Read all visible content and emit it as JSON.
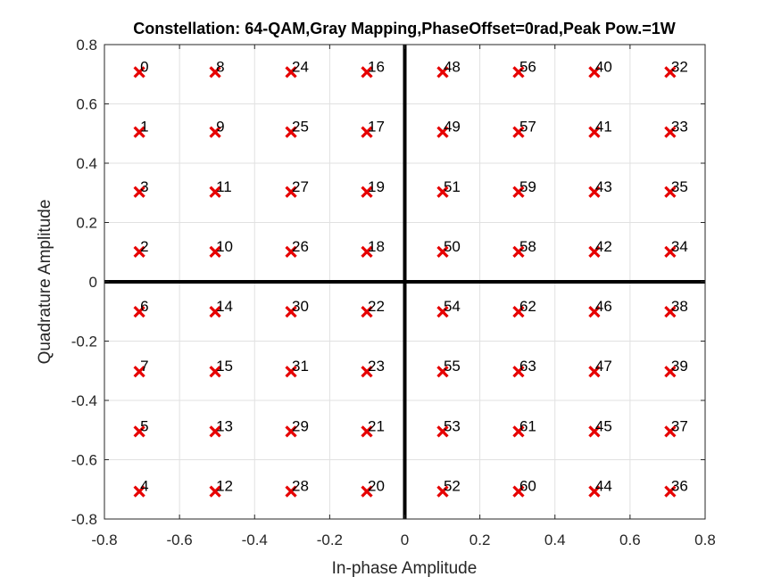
{
  "chart_data": {
    "type": "scatter",
    "title": "Constellation: 64-QAM,Gray Mapping,PhaseOffset=0rad,Peak Pow.=1W",
    "xlabel": "In-phase Amplitude",
    "ylabel": "Quadrature Amplitude",
    "xlim": [
      -0.8,
      0.8
    ],
    "ylim": [
      -0.8,
      0.8
    ],
    "xticks": [
      -0.8,
      -0.6,
      -0.4,
      -0.2,
      0,
      0.2,
      0.4,
      0.6,
      0.8
    ],
    "yticks": [
      -0.8,
      -0.6,
      -0.4,
      -0.2,
      0,
      0.2,
      0.4,
      0.6,
      0.8
    ],
    "xtick_labels": [
      "-0.8",
      "-0.6",
      "-0.4",
      "-0.2",
      "0",
      "0.2",
      "0.4",
      "0.6",
      "0.8"
    ],
    "ytick_labels": [
      "-0.8",
      "-0.6",
      "-0.4",
      "-0.2",
      "0",
      "0.2",
      "0.4",
      "0.6",
      "0.8"
    ],
    "grid": true,
    "marker": "x",
    "marker_color": "#e60000",
    "levels": [
      -0.707,
      -0.505,
      -0.303,
      -0.101,
      0.101,
      0.303,
      0.505,
      0.707
    ],
    "symbol_labels": [
      [
        "0",
        "8",
        "24",
        "16",
        "48",
        "56",
        "40",
        "32"
      ],
      [
        "1",
        "9",
        "25",
        "17",
        "49",
        "57",
        "41",
        "33"
      ],
      [
        "3",
        "11",
        "27",
        "19",
        "51",
        "59",
        "43",
        "35"
      ],
      [
        "2",
        "10",
        "26",
        "18",
        "50",
        "58",
        "42",
        "34"
      ],
      [
        "6",
        "14",
        "30",
        "22",
        "54",
        "62",
        "46",
        "38"
      ],
      [
        "7",
        "15",
        "31",
        "23",
        "55",
        "63",
        "47",
        "39"
      ],
      [
        "5",
        "13",
        "29",
        "21",
        "53",
        "61",
        "45",
        "37"
      ],
      [
        "4",
        "12",
        "28",
        "20",
        "52",
        "60",
        "44",
        "36"
      ]
    ]
  }
}
